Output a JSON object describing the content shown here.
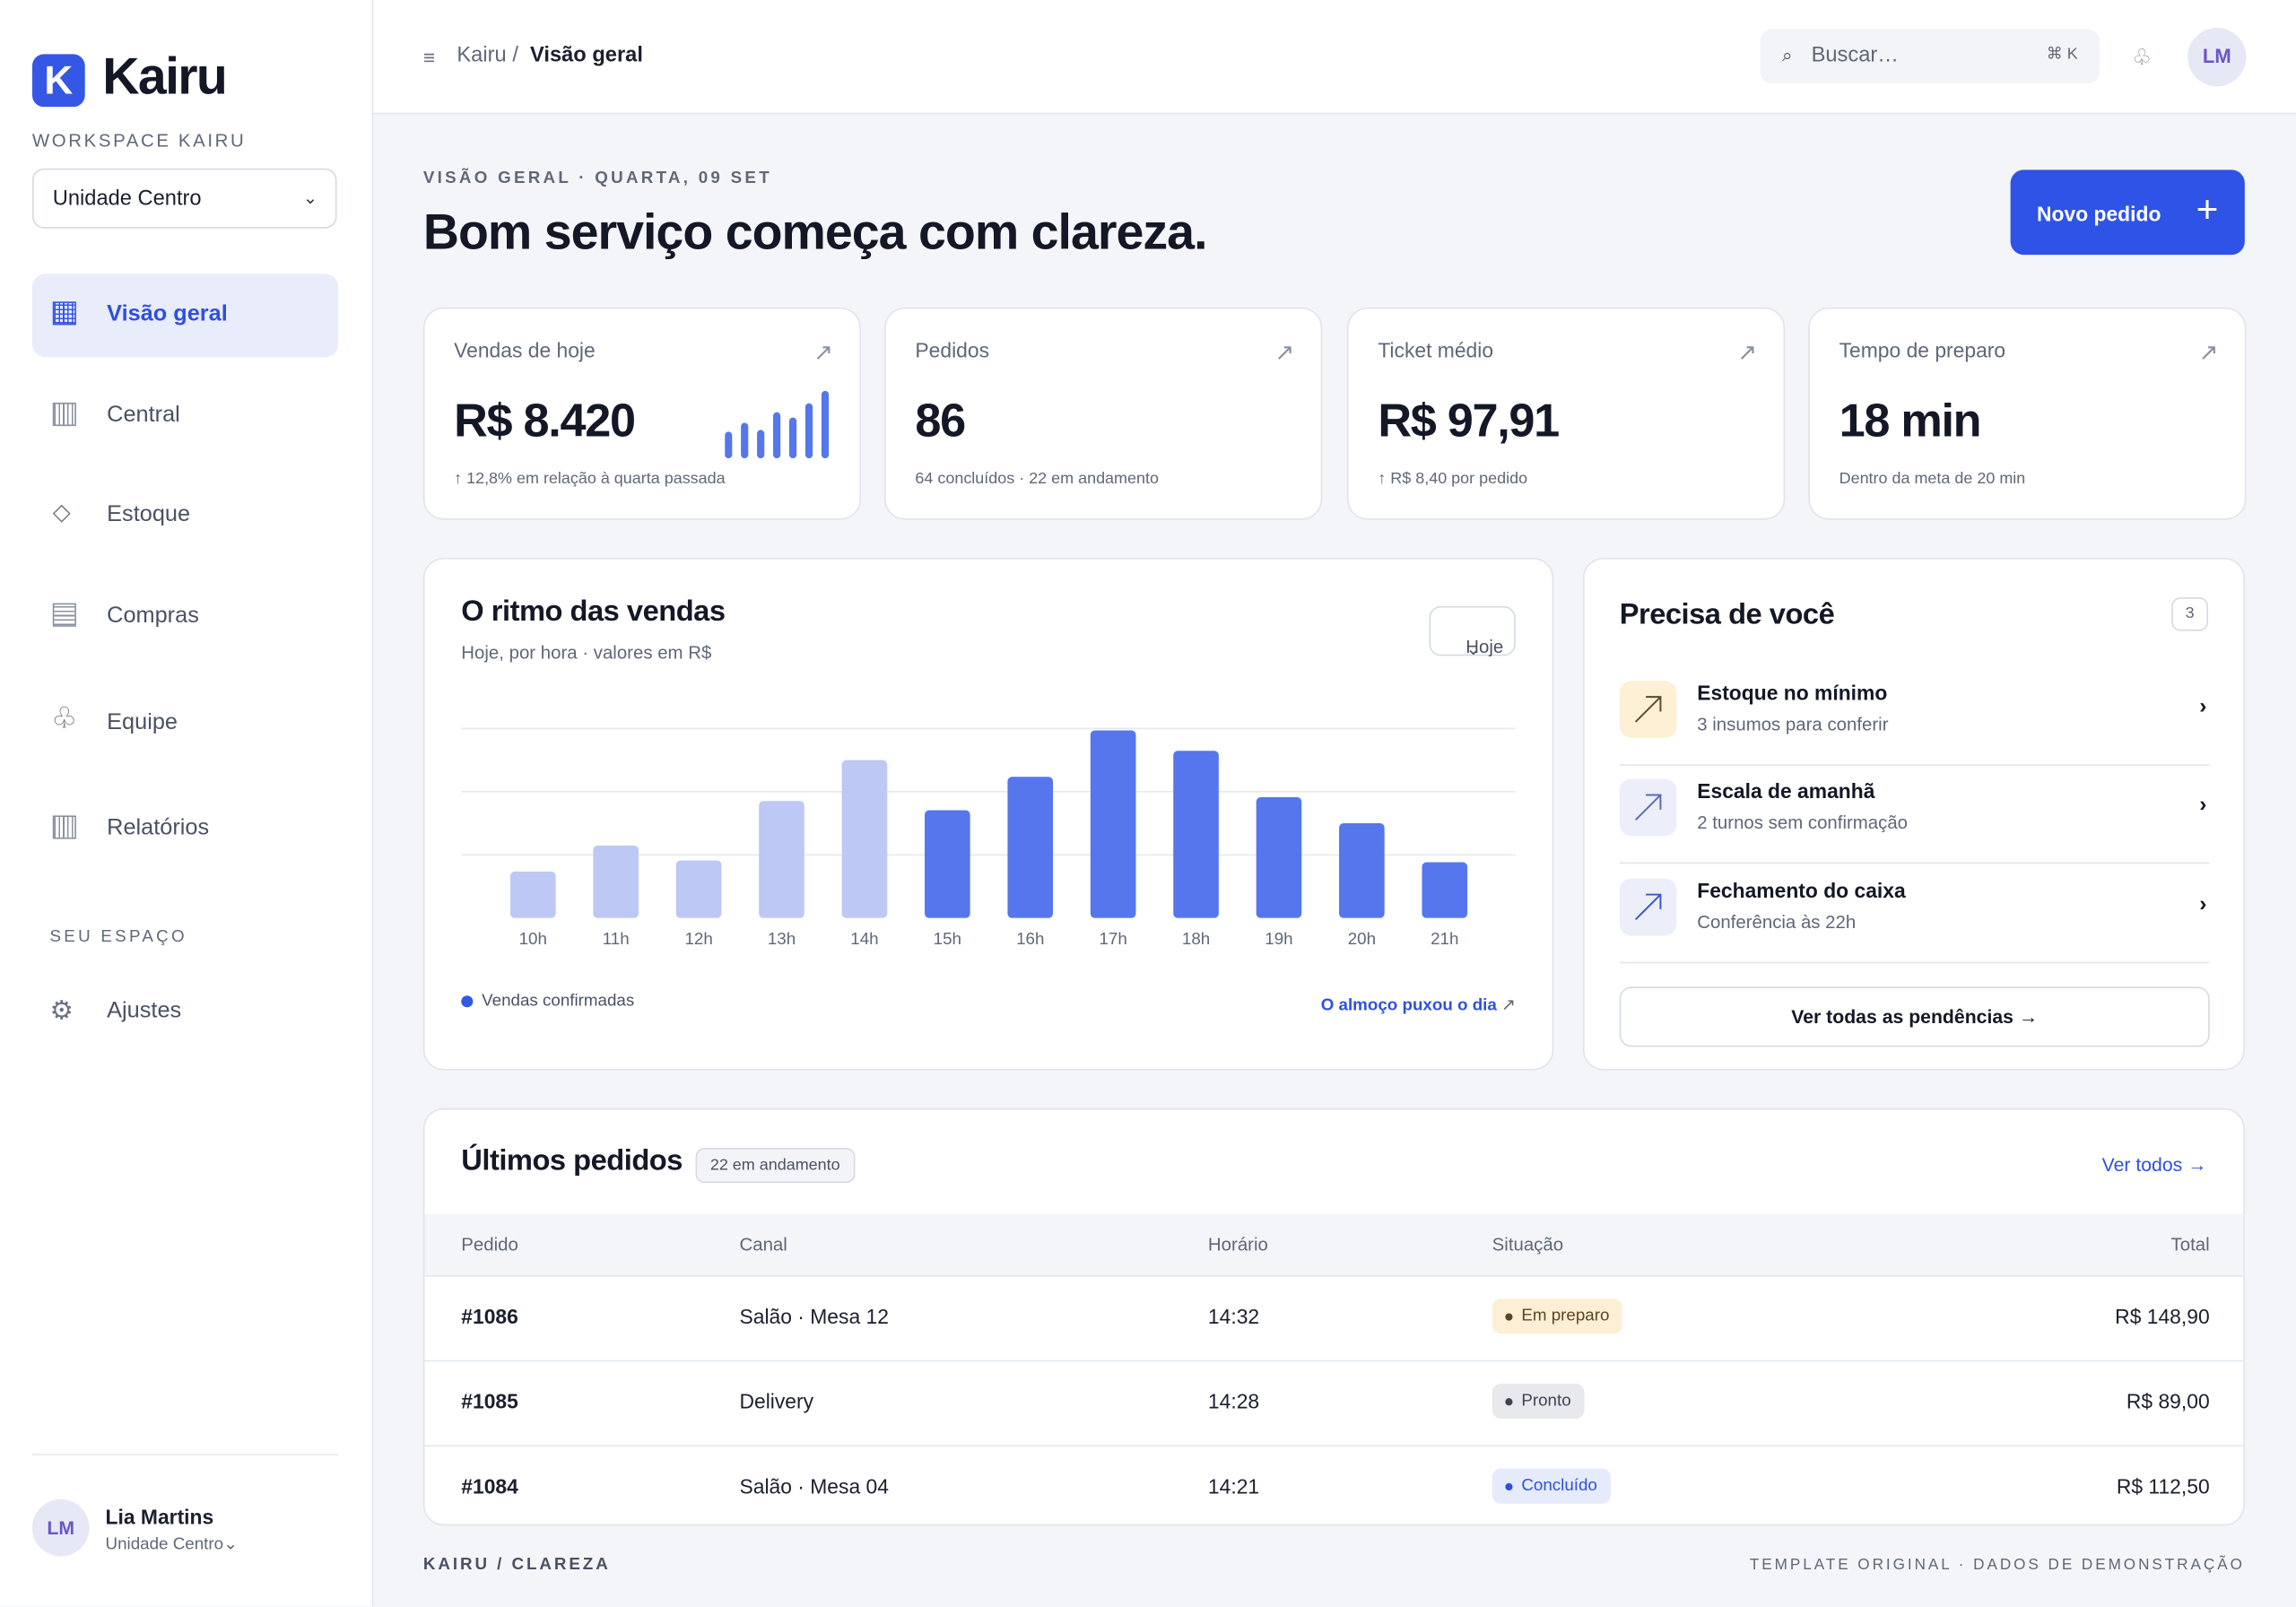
{
  "brand": {
    "logo_letter": "K",
    "name": "Kairu",
    "accent": "#3557e6"
  },
  "sidebar": {
    "workspace_label": "WORKSPACE KAIRU",
    "unit_select": {
      "value": "Unidade Centro",
      "chevron": "⌄"
    },
    "items": [
      {
        "label": "Visão geral",
        "icon": "grid-icon",
        "active": true
      },
      {
        "label": "Central",
        "icon": "columns-icon"
      },
      {
        "label": "Estoque",
        "icon": "diamond-icon",
        "glyph": "◇"
      },
      {
        "label": "Compras",
        "icon": "list-icon"
      },
      {
        "label": "Equipe",
        "icon": "club-icon",
        "glyph": "♧"
      },
      {
        "label": "Relatórios",
        "icon": "columns-icon"
      }
    ],
    "section_label": "SEU ESPAÇO",
    "settings": {
      "label": "Ajustes",
      "icon": "gear-icon",
      "glyph": "⚙"
    },
    "user": {
      "initials": "LM",
      "name": "Lia Martins",
      "unit": "Unidade Centro",
      "chevron": "⌄"
    }
  },
  "topbar": {
    "menu_glyph": "≡",
    "breadcrumb": {
      "root": "Kairu",
      "sep": "/",
      "current": "Visão geral"
    },
    "search": {
      "icon": "⌕",
      "placeholder": "Buscar…",
      "shortcut": "⌘ K"
    },
    "notif_glyph": "♧",
    "avatar_initials": "LM"
  },
  "header": {
    "eyebrow": "VISÃO GERAL · QUARTA, 09 SET",
    "title": "Bom serviço começa com clareza.",
    "new_order_label": "Novo pedido",
    "new_order_plus": "+"
  },
  "kpis": [
    {
      "label": "Vendas de hoje",
      "value": "R$ 8.420",
      "note": "↑ 12,8% em relação à quarta passada",
      "arrow": "↗",
      "sparkline": [
        3,
        4,
        3.2,
        5.2,
        4.6,
        6.2,
        7.6
      ]
    },
    {
      "label": "Pedidos",
      "value": "86",
      "note": "64 concluídos · 22 em andamento",
      "arrow": "↗"
    },
    {
      "label": "Ticket médio",
      "value": "R$ 97,91",
      "note": "↑ R$ 8,40 por pedido",
      "arrow": "↗"
    },
    {
      "label": "Tempo de preparo",
      "value": "18 min",
      "note": "Dentro da meta de 20 min",
      "arrow": "↗"
    }
  ],
  "sales_chart": {
    "title": "O ritmo das vendas",
    "subtitle": "Hoje, por hora · valores em R$",
    "range_select": "Hoje",
    "range_chevron": "⌄",
    "legend": "Vendas confirmadas",
    "insight": "O almoço puxou o dia",
    "insight_arrow": "↗"
  },
  "chart_data": {
    "type": "bar",
    "categories": [
      "10h",
      "11h",
      "12h",
      "13h",
      "14h",
      "15h",
      "16h",
      "17h",
      "18h",
      "19h",
      "20h",
      "21h"
    ],
    "values": [
      25,
      39,
      31,
      63,
      85,
      58,
      76,
      101,
      90,
      65,
      51,
      30
    ],
    "highlight_from_index": 5,
    "colors": {
      "light": "#bdc8f5",
      "strong": "#5576ec"
    },
    "ylim": [
      0,
      108
    ],
    "grid": true,
    "gridlines": [
      34,
      68,
      102
    ],
    "legend_position": "bottom-left"
  },
  "needs": {
    "title": "Precisa de você",
    "count": "3",
    "items": [
      {
        "title": "Estoque no mínimo",
        "sub": "3 insumos para conferir",
        "icon_bg": "#fdf0d5",
        "icon_color": "#5a4a2a",
        "chevron": "›"
      },
      {
        "title": "Escala de amanhã",
        "sub": "2 turnos sem confirmação",
        "icon_bg": "#eceef9",
        "icon_color": "#5b6bb8",
        "chevron": "›"
      },
      {
        "title": "Fechamento do caixa",
        "sub": "Conferência às 22h",
        "icon_bg": "#eceef9",
        "icon_color": "#3b55c8",
        "chevron": "›"
      }
    ],
    "see_all": "Ver todas as pendências →"
  },
  "orders": {
    "title": "Últimos pedidos",
    "badge": "22 em andamento",
    "see_all": "Ver todos →",
    "columns": [
      "Pedido",
      "Canal",
      "Horário",
      "Situação",
      "Total"
    ],
    "rows": [
      {
        "id": "#1086",
        "channel": "Salão · Mesa 12",
        "time": "14:32",
        "status": "Em preparo",
        "status_bg": "#fdefd6",
        "status_fg": "#5a4520",
        "total": "R$ 148,90"
      },
      {
        "id": "#1085",
        "channel": "Delivery",
        "time": "14:28",
        "status": "Pronto",
        "status_bg": "#e8e9ed",
        "status_fg": "#3e4352",
        "total": "R$ 89,00"
      },
      {
        "id": "#1084",
        "channel": "Salão · Mesa 04",
        "time": "14:21",
        "status": "Concluído",
        "status_bg": "#e6ebfc",
        "status_fg": "#2f50de",
        "total": "R$ 112,50"
      }
    ]
  },
  "footer": {
    "left": "KAIRU / CLAREZA",
    "right": "TEMPLATE ORIGINAL · DADOS DE DEMONSTRAÇÃO"
  }
}
